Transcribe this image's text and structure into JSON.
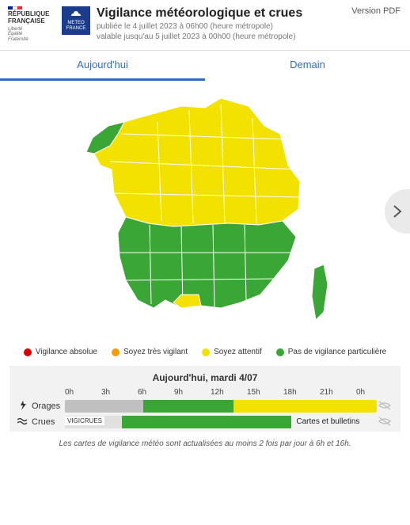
{
  "gov": {
    "line1": "RÉPUBLIQUE",
    "line2": "FRANÇAISE",
    "motto": "Liberté\nÉgalité\nFraternité"
  },
  "meteo_logo": "METEO\nFRANCE",
  "title": "Vigilance météorologique et crues",
  "published": "publiée le 4 juillet 2023 à 06h00 (heure métropole)",
  "valid": "valable jusqu'au 5 juillet 2023 à 00h00 (heure métropole)",
  "pdf": "Version PDF",
  "tabs": {
    "today": "Aujourd'hui",
    "tomorrow": "Demain"
  },
  "colors": {
    "red": "#d90000",
    "orange": "#f59c00",
    "yellow": "#f3e200",
    "green": "#3aa635",
    "grey": "#c0c0c0",
    "grey_light": "#e0e0e0"
  },
  "legend": [
    {
      "color": "#d90000",
      "label": "Vigilance absolue"
    },
    {
      "color": "#f59c00",
      "label": "Soyez très vigilant"
    },
    {
      "color": "#f3e200",
      "label": "Soyez attentif"
    },
    {
      "color": "#3aa635",
      "label": "Pas de vigilance particulière"
    }
  ],
  "timeline": {
    "title": "Aujourd'hui, mardi 4/07",
    "hours": [
      "0h",
      "3h",
      "6h",
      "9h",
      "12h",
      "15h",
      "18h",
      "21h",
      "0h"
    ],
    "rows": [
      {
        "name": "orages",
        "label": "Orages",
        "segments": [
          {
            "color": "#c0c0c0",
            "pct": 25
          },
          {
            "color": "#3aa635",
            "pct": 29
          },
          {
            "color": "#f3e200",
            "pct": 46
          }
        ]
      },
      {
        "name": "crues",
        "label": "Crues",
        "badge": "VIGICRUES",
        "link": "Cartes et bulletins Vigicrues ▸",
        "segments": [
          {
            "color": "#e0e0e0",
            "pct": 25
          },
          {
            "color": "#3aa635",
            "pct": 75
          }
        ]
      }
    ]
  },
  "footnote": "Les cartes de vigilance météo sont actualisées au moins 2 fois par jour à 6h et 16h."
}
